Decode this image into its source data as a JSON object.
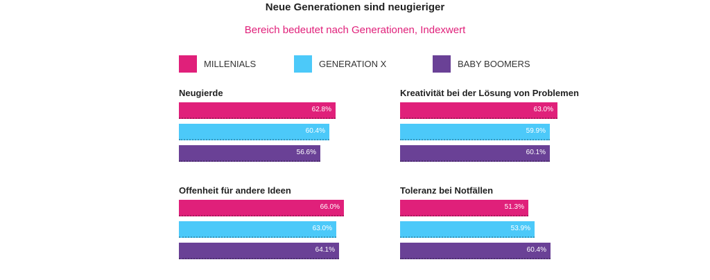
{
  "chart_data": {
    "type": "bar",
    "orientation": "horizontal",
    "title": "Neue Generationen sind neugieriger",
    "subtitle": "Bereich bedeutet nach Generationen, Indexwert",
    "legend": [
      {
        "name": "MILLENIALS",
        "color": "#e0207a"
      },
      {
        "name": "GENERATION X",
        "color": "#4cc9f9"
      },
      {
        "name": "BABY BOOMERS",
        "color": "#6a4196"
      }
    ],
    "subtitle_color": "#e0207a",
    "xlim": [
      0,
      70
    ],
    "panels": [
      {
        "title": "Neugierde",
        "values": [
          62.8,
          60.4,
          56.6
        ],
        "labels": [
          "62.8%",
          "60.4%",
          "56.6%"
        ]
      },
      {
        "title": "Kreativität bei der Lösung von Problemen",
        "values": [
          63.0,
          59.9,
          60.1
        ],
        "labels": [
          "63.0%",
          "59.9%",
          "60.1%"
        ]
      },
      {
        "title": "Offenheit für andere Ideen",
        "values": [
          66.0,
          63.0,
          64.1
        ],
        "labels": [
          "66.0%",
          "63.0%",
          "64.1%"
        ]
      },
      {
        "title": "Toleranz bei Notfällen",
        "values": [
          51.3,
          53.9,
          60.4
        ],
        "labels": [
          "51.3%",
          "53.9%",
          "60.4%"
        ]
      }
    ]
  }
}
